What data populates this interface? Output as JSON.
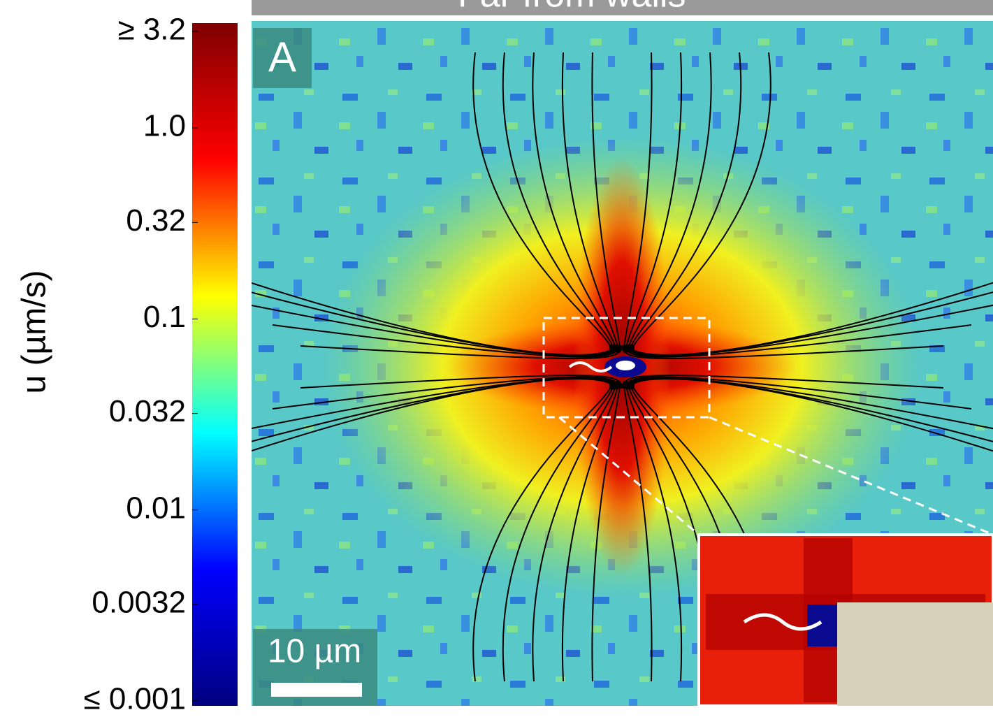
{
  "chart_data": {
    "type": "heatmap",
    "title": "Far from walls",
    "panel_label": "A",
    "scale_bar_label": "10 µm",
    "colorbar": {
      "label": "u (µm/s)",
      "log_scale": true,
      "clim": [
        0.001,
        3.2
      ],
      "colors": [
        "#00007f",
        "#0000ff",
        "#00ffff",
        "#ffff00",
        "#ff0000",
        "#7f0000"
      ],
      "ticks": [
        {
          "value": 3.2,
          "label": "≥ 3.2"
        },
        {
          "value": 1,
          "label": "1.0"
        },
        0.32,
        0.1,
        0.032,
        0.01,
        0.0032,
        {
          "value": 0.001,
          "label": "≤ 0.001"
        }
      ]
    }
  }
}
